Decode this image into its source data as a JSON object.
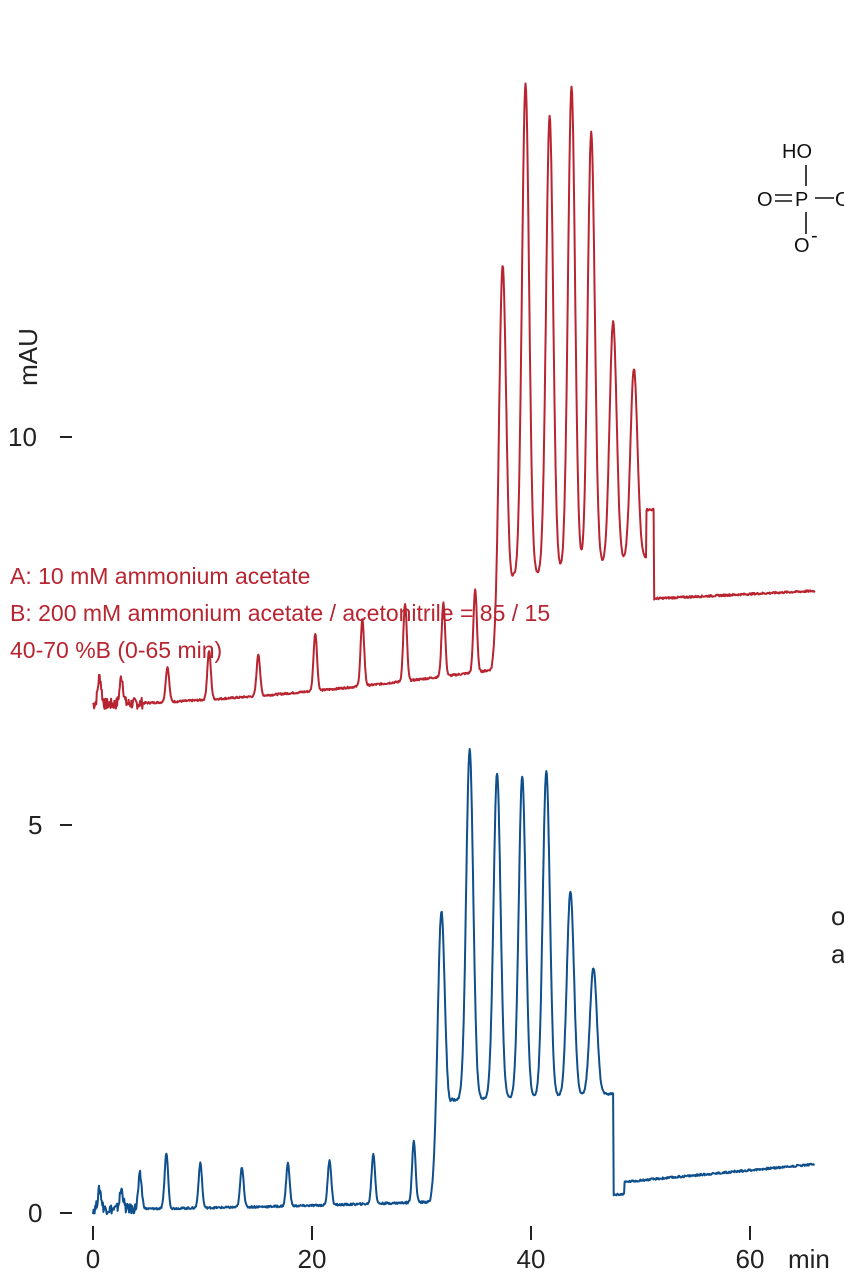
{
  "chart_data": [
    {
      "type": "line",
      "name": "upper-chromatogram",
      "color": "#b82530",
      "y_unit_label": "mAU",
      "y_ticks": [
        {
          "value": 10,
          "label": "10"
        }
      ],
      "x_range": [
        0,
        66
      ],
      "y_range": [
        8.3,
        12.2
      ],
      "baseline": {
        "start": 8.35,
        "end": 9.05,
        "plateau_after": 9.0,
        "plateau_start": 50.5
      },
      "major_peaks": [
        {
          "x": 37.4,
          "y": 11.33
        },
        {
          "x": 39.5,
          "y": 12.18
        },
        {
          "x": 41.7,
          "y": 11.98
        },
        {
          "x": 43.7,
          "y": 12.16
        },
        {
          "x": 45.5,
          "y": 11.88
        },
        {
          "x": 47.5,
          "y": 10.71
        },
        {
          "x": 49.4,
          "y": 10.42
        }
      ],
      "minor_peaks": [
        {
          "x": 0.6,
          "y": 8.52
        },
        {
          "x": 2.6,
          "y": 8.52
        },
        {
          "x": 6.8,
          "y": 8.58
        },
        {
          "x": 10.6,
          "y": 8.68
        },
        {
          "x": 15.1,
          "y": 8.66
        },
        {
          "x": 20.3,
          "y": 8.79
        },
        {
          "x": 24.6,
          "y": 8.87
        },
        {
          "x": 28.5,
          "y": 8.97
        },
        {
          "x": 32.0,
          "y": 8.98
        },
        {
          "x": 34.9,
          "y": 9.06
        }
      ],
      "conditions": [
        "A: 10 mM ammonium acetate",
        "B: 200 mM ammonium acetate / acetonitrile = 85 / 15",
        "40-70 %B (0-65 min)"
      ]
    },
    {
      "type": "line",
      "name": "lower-chromatogram",
      "color": "#0e4f8c",
      "y_ticks": [
        {
          "value": 0,
          "label": "0"
        },
        {
          "value": 5,
          "label": "5"
        }
      ],
      "x_ticks": [
        {
          "value": 0,
          "label": "0"
        },
        {
          "value": 20,
          "label": "20"
        },
        {
          "value": 40,
          "label": "40"
        },
        {
          "value": 60,
          "label": "60"
        }
      ],
      "x_unit_label": "min",
      "x_range": [
        0,
        66
      ],
      "y_range": [
        0,
        6.0
      ],
      "baseline": {
        "start": 0.05,
        "end": 0.63,
        "plateau_after": 0.4,
        "plateau_start": 48.5
      },
      "major_peaks": [
        {
          "x": 31.8,
          "y": 4.53
        },
        {
          "x": 34.4,
          "y": 5.97
        },
        {
          "x": 36.9,
          "y": 5.67
        },
        {
          "x": 39.2,
          "y": 5.62
        },
        {
          "x": 41.4,
          "y": 5.7
        },
        {
          "x": 43.6,
          "y": 4.15
        },
        {
          "x": 45.7,
          "y": 3.16
        }
      ],
      "minor_peaks": [
        {
          "x": 0.6,
          "y": 0.3
        },
        {
          "x": 2.6,
          "y": 0.3
        },
        {
          "x": 4.3,
          "y": 0.48
        },
        {
          "x": 6.7,
          "y": 0.77
        },
        {
          "x": 9.8,
          "y": 0.64
        },
        {
          "x": 13.6,
          "y": 0.59
        },
        {
          "x": 17.8,
          "y": 0.64
        },
        {
          "x": 21.6,
          "y": 0.68
        },
        {
          "x": 25.6,
          "y": 0.76
        },
        {
          "x": 29.3,
          "y": 0.92
        }
      ]
    }
  ],
  "structure": {
    "atoms": [
      "HO",
      "O",
      "P",
      "O",
      "O"
    ],
    "charge": "-",
    "clipped_right": "O"
  },
  "right_text": [
    "o",
    "a"
  ]
}
